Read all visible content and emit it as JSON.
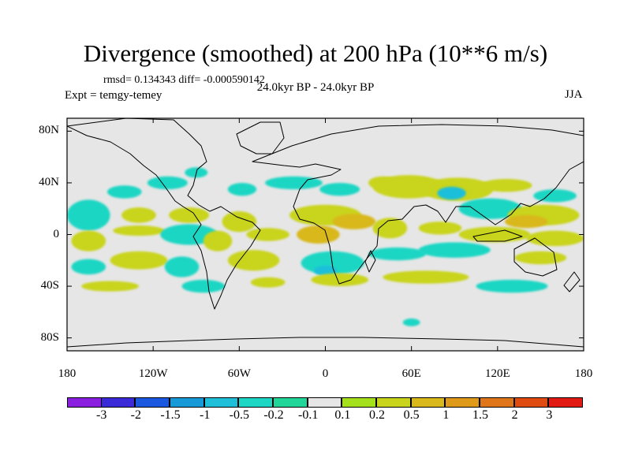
{
  "chart_data": {
    "type": "map-contour",
    "title": "Divergence (smoothed) at 200 hPa (10**6 m/s)",
    "stats_text": "rmsd= 0.134343  diff= -0.000590142",
    "subtitle": "24.0kyr BP - 24.0kyr BP",
    "experiment": "Expt = temgy-temey",
    "season": "JJA",
    "lon_range": [
      -180,
      180
    ],
    "lat_range": [
      -90,
      90
    ],
    "y_ticks": [
      {
        "label": "80N",
        "lat": 80
      },
      {
        "label": "40N",
        "lat": 40
      },
      {
        "label": "0",
        "lat": 0
      },
      {
        "label": "40S",
        "lat": -40
      },
      {
        "label": "80S",
        "lat": -80
      }
    ],
    "x_ticks": [
      {
        "label": "180",
        "lon": -180
      },
      {
        "label": "120W",
        "lon": -120
      },
      {
        "label": "60W",
        "lon": -60
      },
      {
        "label": "0",
        "lon": 0
      },
      {
        "label": "60E",
        "lon": 60
      },
      {
        "label": "120E",
        "lon": 120
      },
      {
        "label": "180",
        "lon": 180
      }
    ],
    "colorbar": {
      "colors": [
        "#8a1fe0",
        "#3b2ad8",
        "#1a58e0",
        "#199ad8",
        "#1fbfd9",
        "#1dd6c4",
        "#22d69a",
        "#e6e6e6",
        "#a5e01c",
        "#c9d41c",
        "#d9b81c",
        "#e09a1a",
        "#e0761a",
        "#e04b12",
        "#e21a14"
      ],
      "labels": [
        "-3",
        "-2",
        "-1.5",
        "-1",
        "-0.5",
        "-0.2",
        "-0.1",
        "0.1",
        "0.2",
        "0.5",
        "1",
        "1.5",
        "2",
        "3"
      ]
    },
    "blobs": [
      {
        "lon": -140,
        "lat": 33,
        "rx": 12,
        "ry": 5,
        "value": -0.3
      },
      {
        "lon": -110,
        "lat": 40,
        "rx": 14,
        "ry": 5,
        "value": -0.3
      },
      {
        "lon": -90,
        "lat": 48,
        "rx": 8,
        "ry": 4,
        "value": -0.3
      },
      {
        "lon": -58,
        "lat": 35,
        "rx": 10,
        "ry": 5,
        "value": -0.3
      },
      {
        "lon": -22,
        "lat": 40,
        "rx": 20,
        "ry": 5,
        "value": -0.3
      },
      {
        "lon": 10,
        "lat": 35,
        "rx": 14,
        "ry": 5,
        "value": -0.3
      },
      {
        "lon": 40,
        "lat": 40,
        "rx": 10,
        "ry": 5,
        "value": 0.3
      },
      {
        "lon": 58,
        "lat": 37,
        "rx": 25,
        "ry": 9,
        "value": 0.3
      },
      {
        "lon": 92,
        "lat": 35,
        "rx": 25,
        "ry": 9,
        "value": 0.3
      },
      {
        "lon": 88,
        "lat": 32,
        "rx": 10,
        "ry": 5,
        "value": -0.6
      },
      {
        "lon": 126,
        "lat": 38,
        "rx": 18,
        "ry": 5,
        "value": 0.3
      },
      {
        "lon": 160,
        "lat": 30,
        "rx": 15,
        "ry": 5,
        "value": -0.3
      },
      {
        "lon": 115,
        "lat": 20,
        "rx": 22,
        "ry": 8,
        "value": -0.3
      },
      {
        "lon": 152,
        "lat": 15,
        "rx": 25,
        "ry": 8,
        "value": 0.3
      },
      {
        "lon": 140,
        "lat": 10,
        "rx": 15,
        "ry": 5,
        "value": 0.8
      },
      {
        "lon": -165,
        "lat": 15,
        "rx": 15,
        "ry": 12,
        "value": -0.3
      },
      {
        "lon": -130,
        "lat": 15,
        "rx": 12,
        "ry": 6,
        "value": 0.3
      },
      {
        "lon": -95,
        "lat": 15,
        "rx": 14,
        "ry": 6,
        "value": 0.3
      },
      {
        "lon": -60,
        "lat": 10,
        "rx": 12,
        "ry": 8,
        "value": 0.3
      },
      {
        "lon": 0,
        "lat": 15,
        "rx": 25,
        "ry": 8,
        "value": 0.3
      },
      {
        "lon": 20,
        "lat": 10,
        "rx": 15,
        "ry": 6,
        "value": 0.8
      },
      {
        "lon": -165,
        "lat": -5,
        "rx": 12,
        "ry": 8,
        "value": 0.3
      },
      {
        "lon": -130,
        "lat": 3,
        "rx": 18,
        "ry": 4,
        "value": 0.3
      },
      {
        "lon": -95,
        "lat": 0,
        "rx": 20,
        "ry": 8,
        "value": -0.3
      },
      {
        "lon": -75,
        "lat": -5,
        "rx": 10,
        "ry": 8,
        "value": 0.3
      },
      {
        "lon": -40,
        "lat": 0,
        "rx": 15,
        "ry": 5,
        "value": 0.3
      },
      {
        "lon": -5,
        "lat": 0,
        "rx": 15,
        "ry": 7,
        "value": 0.5
      },
      {
        "lon": 45,
        "lat": 5,
        "rx": 12,
        "ry": 8,
        "value": 0.3
      },
      {
        "lon": 80,
        "lat": 5,
        "rx": 15,
        "ry": 5,
        "value": 0.3
      },
      {
        "lon": 118,
        "lat": 0,
        "rx": 25,
        "ry": 6,
        "value": 0.3
      },
      {
        "lon": 160,
        "lat": -3,
        "rx": 20,
        "ry": 6,
        "value": 0.3
      },
      {
        "lon": -165,
        "lat": -25,
        "rx": 12,
        "ry": 6,
        "value": -0.3
      },
      {
        "lon": -130,
        "lat": -20,
        "rx": 20,
        "ry": 7,
        "value": 0.3
      },
      {
        "lon": -100,
        "lat": -25,
        "rx": 12,
        "ry": 8,
        "value": -0.3
      },
      {
        "lon": -50,
        "lat": -20,
        "rx": 18,
        "ry": 8,
        "value": 0.3
      },
      {
        "lon": 5,
        "lat": -22,
        "rx": 22,
        "ry": 9,
        "value": -0.3
      },
      {
        "lon": 0,
        "lat": -28,
        "rx": 8,
        "ry": 4,
        "value": -0.8
      },
      {
        "lon": 50,
        "lat": -15,
        "rx": 20,
        "ry": 5,
        "value": -0.3
      },
      {
        "lon": 90,
        "lat": -12,
        "rx": 25,
        "ry": 6,
        "value": -0.3
      },
      {
        "lon": 150,
        "lat": -18,
        "rx": 18,
        "ry": 5,
        "value": 0.3
      },
      {
        "lon": -150,
        "lat": -40,
        "rx": 20,
        "ry": 4,
        "value": 0.3
      },
      {
        "lon": -85,
        "lat": -40,
        "rx": 15,
        "ry": 5,
        "value": -0.3
      },
      {
        "lon": -40,
        "lat": -37,
        "rx": 12,
        "ry": 4,
        "value": 0.3
      },
      {
        "lon": 10,
        "lat": -35,
        "rx": 20,
        "ry": 5,
        "value": 0.3
      },
      {
        "lon": 70,
        "lat": -33,
        "rx": 30,
        "ry": 5,
        "value": 0.3
      },
      {
        "lon": 130,
        "lat": -40,
        "rx": 25,
        "ry": 5,
        "value": -0.3
      },
      {
        "lon": 60,
        "lat": -68,
        "rx": 6,
        "ry": 3,
        "value": -0.3
      }
    ]
  }
}
